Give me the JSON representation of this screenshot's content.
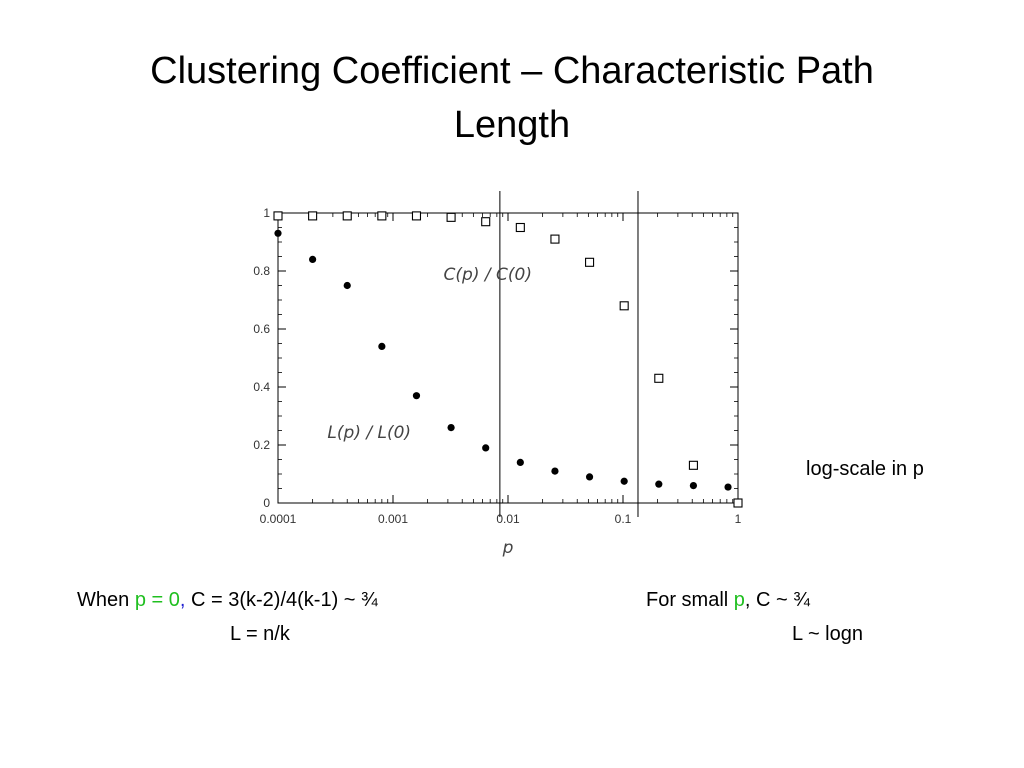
{
  "slide": {
    "title_line1": "Clustering Coefficient – Characteristic Path",
    "title_line2": "Length",
    "side_note": "log-scale in p",
    "left_note": {
      "prefix": "When ",
      "p_eq": "p = 0",
      "comma": ",",
      "formula_c": " C = 3(k-2)/4(k-1) ~ ¾",
      "formula_l": "L = n/k"
    },
    "right_note": {
      "prefix": "For small ",
      "p": "p",
      "suffix": ", C ~ ¾",
      "formula_l": "L ~ logn"
    }
  },
  "colors": {
    "green": "#1fbf1f",
    "blue": "#1f1fd0"
  },
  "chart_data": {
    "type": "scatter",
    "x_scale": "log",
    "xlim": [
      0.0001,
      1
    ],
    "ylim": [
      0,
      1
    ],
    "xlabel": "p",
    "ylabel": "",
    "x_ticks": [
      {
        "value": 0.0001,
        "label": "0.0001"
      },
      {
        "value": 0.001,
        "label": "0.001"
      },
      {
        "value": 0.01,
        "label": "0.01"
      },
      {
        "value": 0.1,
        "label": "0.1"
      },
      {
        "value": 1,
        "label": "1"
      }
    ],
    "y_ticks": [
      {
        "value": 0,
        "label": "0"
      },
      {
        "value": 0.2,
        "label": "0.2"
      },
      {
        "value": 0.4,
        "label": "0.4"
      },
      {
        "value": 0.6,
        "label": "0.6"
      },
      {
        "value": 0.8,
        "label": "0.8"
      },
      {
        "value": 1,
        "label": "1"
      }
    ],
    "vertical_lines": [
      0.0085,
      0.135
    ],
    "series": [
      {
        "name": "C(p) / C(0)",
        "marker": "open-square",
        "x": [
          0.0001,
          0.0002,
          0.0004,
          0.0008,
          0.0016,
          0.0032,
          0.0064,
          0.0128,
          0.0256,
          0.0512,
          0.1024,
          0.2048,
          0.4096,
          1
        ],
        "y": [
          0.99,
          0.99,
          0.99,
          0.99,
          0.99,
          0.985,
          0.97,
          0.95,
          0.91,
          0.83,
          0.68,
          0.43,
          0.13,
          0.0
        ]
      },
      {
        "name": "L(p) / L(0)",
        "marker": "filled-circle",
        "x": [
          0.0001,
          0.0002,
          0.0004,
          0.0008,
          0.0016,
          0.0032,
          0.0064,
          0.0128,
          0.0256,
          0.0512,
          0.1024,
          0.2048,
          0.4096,
          0.8192
        ],
        "y": [
          0.93,
          0.84,
          0.75,
          0.54,
          0.37,
          0.26,
          0.19,
          0.14,
          0.11,
          0.09,
          0.075,
          0.065,
          0.06,
          0.055
        ]
      }
    ]
  }
}
